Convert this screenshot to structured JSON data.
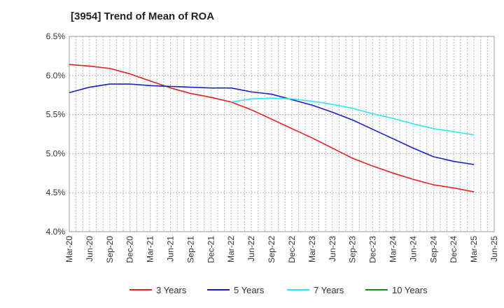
{
  "chart_data": {
    "type": "line",
    "title": "[3954]  Trend of Mean of ROA",
    "xlabel": "",
    "ylabel": "",
    "ylim": [
      4.0,
      6.5
    ],
    "y_ticks": [
      "4.0%",
      "4.5%",
      "5.0%",
      "5.5%",
      "6.0%",
      "6.5%"
    ],
    "y_tick_values": [
      4.0,
      4.5,
      5.0,
      5.5,
      6.0,
      6.5
    ],
    "x_ticks": [
      "Mar-20",
      "Jun-20",
      "Sep-20",
      "Dec-20",
      "Mar-21",
      "Jun-21",
      "Sep-21",
      "Dec-21",
      "Mar-22",
      "Jun-22",
      "Sep-22",
      "Dec-22",
      "Mar-23",
      "Jun-23",
      "Sep-23",
      "Dec-23",
      "Mar-24",
      "Jun-24",
      "Sep-24",
      "Dec-24",
      "Mar-25",
      "Jun-25"
    ],
    "grid": true,
    "legend_position": "bottom",
    "series": [
      {
        "name": "3 Years",
        "color": "#e8201e",
        "start_index": 0,
        "values": [
          6.14,
          6.12,
          6.09,
          6.02,
          5.93,
          5.84,
          5.77,
          5.72,
          5.66,
          5.56,
          5.44,
          5.32,
          5.2,
          5.07,
          4.94,
          4.84,
          4.75,
          4.67,
          4.6,
          4.56,
          4.51
        ]
      },
      {
        "name": "5 Years",
        "color": "#1a1fcc",
        "start_index": 0,
        "values": [
          5.78,
          5.85,
          5.89,
          5.89,
          5.87,
          5.86,
          5.85,
          5.84,
          5.84,
          5.79,
          5.76,
          5.69,
          5.62,
          5.53,
          5.43,
          5.31,
          5.19,
          5.07,
          4.96,
          4.9,
          4.86
        ]
      },
      {
        "name": "7 Years",
        "color": "#2ee8ee",
        "start_index": 8,
        "values": [
          5.66,
          5.7,
          5.71,
          5.7,
          5.67,
          5.63,
          5.58,
          5.51,
          5.45,
          5.38,
          5.32,
          5.28,
          5.24
        ]
      },
      {
        "name": "10 Years",
        "color": "#1e8a1e",
        "start_index": 0,
        "values": []
      }
    ]
  }
}
